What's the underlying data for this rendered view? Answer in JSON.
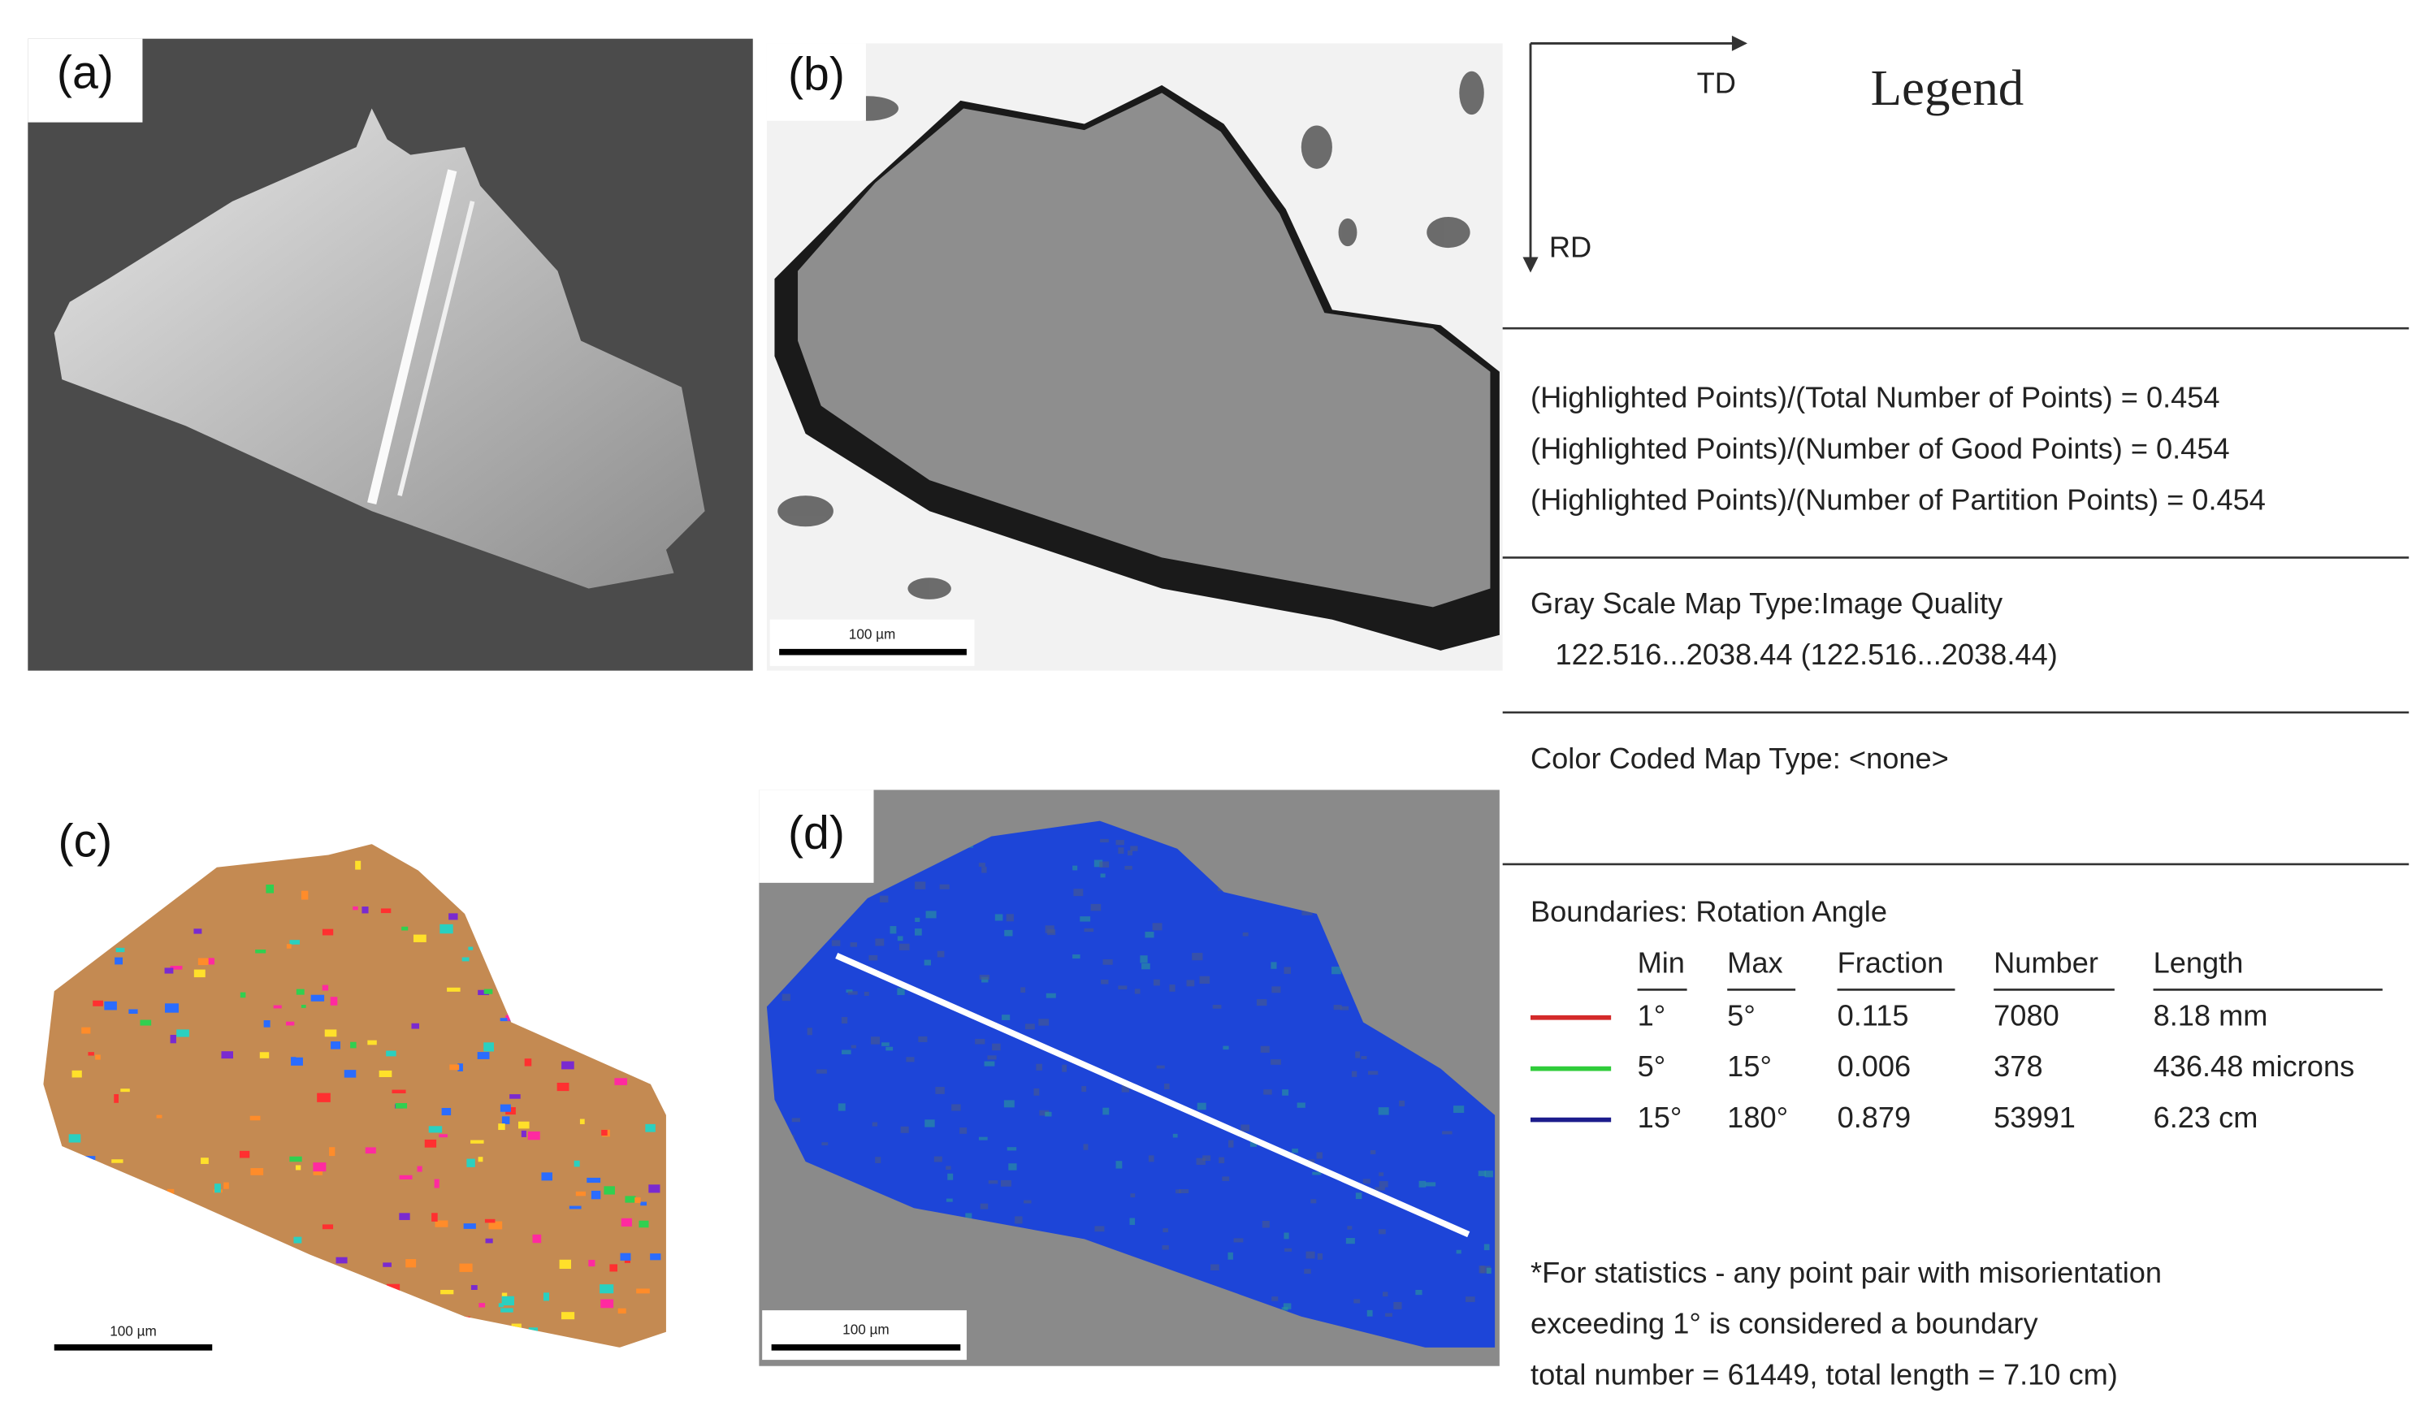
{
  "panels": [
    {
      "label": "(a)"
    },
    {
      "label": "(b)",
      "scale_bar": "100 µm"
    },
    {
      "label": "(c)",
      "scale_bar": "100 µm"
    },
    {
      "label": "(d)",
      "scale_bar": "100 µm"
    }
  ],
  "legend": {
    "axes": {
      "x": "TD",
      "y": "RD"
    },
    "title": "Legend",
    "ratios": [
      "(Highlighted Points)/(Total Number of Points) =  0.454",
      "(Highlighted Points)/(Number of Good Points) =  0.454",
      "(Highlighted Points)/(Number of Partition Points) =  0.454"
    ],
    "gray_scale": {
      "type": "Gray Scale Map Type:Image Quality",
      "range": "122.516...2038.44 (122.516...2038.44)"
    },
    "color_coded": "Color Coded Map Type: <none>",
    "boundaries": {
      "title": "Boundaries: Rotation Angle",
      "columns": [
        "Min",
        "Max",
        "Fraction",
        "Number",
        "Length"
      ],
      "rows": [
        {
          "color": "#d42a2a",
          "cells": [
            "1°",
            "5°",
            "0.115",
            "7080",
            "8.18 mm"
          ]
        },
        {
          "color": "#2fcc3a",
          "cells": [
            "5°",
            "15°",
            "0.006",
            "378",
            "436.48 microns"
          ]
        },
        {
          "color": "#1c1c8c",
          "cells": [
            "15°",
            "180°",
            "0.879",
            "53991",
            "6.23 cm"
          ]
        }
      ]
    },
    "footnote": [
      "*For statistics - any point pair with misorientation",
      "exceeding 1° is considered a boundary",
      "total number = 61449, total length = 7.10 cm)"
    ]
  }
}
